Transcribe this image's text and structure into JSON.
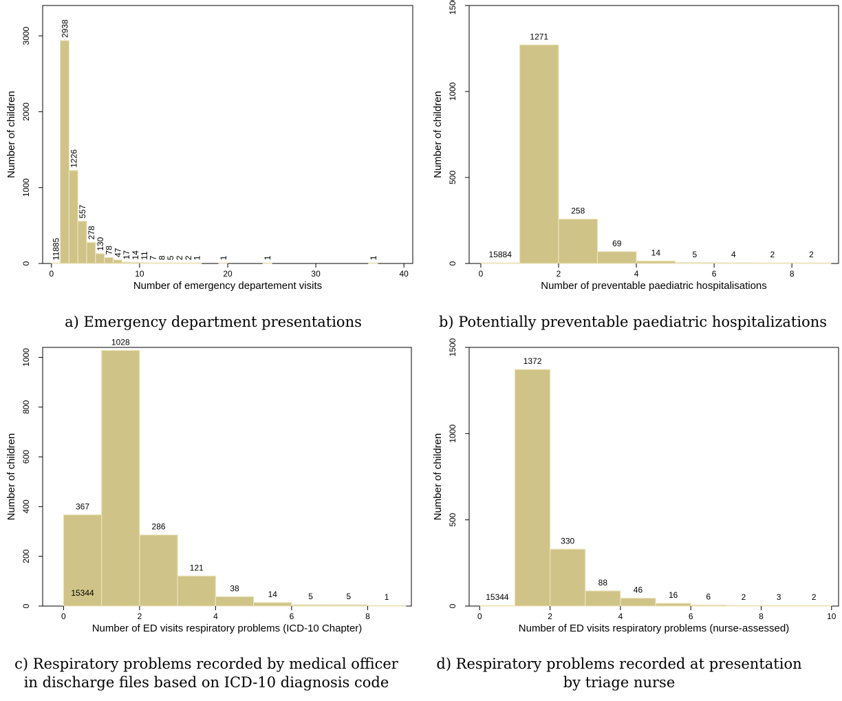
{
  "colors": {
    "bar_fill": "#cfc387",
    "bar_edge": "#ece4bd",
    "axis": "#000000",
    "text": "#000000"
  },
  "chart_data": [
    {
      "id": "a",
      "type": "bar",
      "caption": [
        "a) Emergency department presentations"
      ],
      "xlabel": "Number of emergency departement visits",
      "ylabel": "Number of children",
      "xlim": [
        -1,
        41
      ],
      "ylim": [
        0,
        3400
      ],
      "xticks": [
        "0",
        "10",
        "20",
        "30",
        "40"
      ],
      "yticks": [
        "0",
        "1000",
        "2000",
        "3000"
      ],
      "label_orientation": "vertical",
      "bar_width": 1,
      "bars": [
        {
          "x": 0,
          "value": 0,
          "label": "11885"
        },
        {
          "x": 1,
          "value": 2938,
          "label": "2938"
        },
        {
          "x": 2,
          "value": 1226,
          "label": "1226"
        },
        {
          "x": 3,
          "value": 557,
          "label": "557"
        },
        {
          "x": 4,
          "value": 278,
          "label": "278"
        },
        {
          "x": 5,
          "value": 130,
          "label": "130"
        },
        {
          "x": 6,
          "value": 78,
          "label": "78"
        },
        {
          "x": 7,
          "value": 47,
          "label": "47"
        },
        {
          "x": 8,
          "value": 17,
          "label": "17"
        },
        {
          "x": 9,
          "value": 14,
          "label": "14"
        },
        {
          "x": 10,
          "value": 11,
          "label": "11"
        },
        {
          "x": 11,
          "value": 7,
          "label": "7"
        },
        {
          "x": 12,
          "value": 8,
          "label": "8"
        },
        {
          "x": 13,
          "value": 5,
          "label": "5"
        },
        {
          "x": 14,
          "value": 2,
          "label": "2"
        },
        {
          "x": 15,
          "value": 2,
          "label": "2"
        },
        {
          "x": 16,
          "value": 1,
          "label": "1"
        },
        {
          "x": 19,
          "value": 1,
          "label": "1"
        },
        {
          "x": 24,
          "value": 1,
          "label": "1"
        },
        {
          "x": 36,
          "value": 1,
          "label": "1"
        }
      ]
    },
    {
      "id": "b",
      "type": "bar",
      "caption": [
        "b) Potentially preventable paediatric hospitalizations"
      ],
      "xlabel": "Number of preventable paediatric hospitalisations",
      "ylabel": "Number of children",
      "xlim": [
        -0.3,
        9.2
      ],
      "ylim": [
        0,
        1500
      ],
      "xticks": [
        "0",
        "2",
        "4",
        "6",
        "8"
      ],
      "yticks": [
        "0",
        "500",
        "1000",
        "1500"
      ],
      "label_orientation": "horizontal",
      "bar_width": 1,
      "bars": [
        {
          "x": 0,
          "value": 0,
          "label": "15884"
        },
        {
          "x": 1,
          "value": 1271,
          "label": "1271"
        },
        {
          "x": 2,
          "value": 258,
          "label": "258"
        },
        {
          "x": 3,
          "value": 69,
          "label": "69"
        },
        {
          "x": 4,
          "value": 14,
          "label": "14"
        },
        {
          "x": 5,
          "value": 5,
          "label": "5"
        },
        {
          "x": 6,
          "value": 4,
          "label": "4"
        },
        {
          "x": 7,
          "value": 2,
          "label": "2"
        },
        {
          "x": 8,
          "value": 2,
          "label": "2"
        }
      ]
    },
    {
      "id": "c",
      "type": "bar",
      "caption": [
        "c) Respiratory problems recorded by medical officer",
        "in discharge files based on ICD-10 diagnosis code"
      ],
      "xlabel": "Number of ED visits respiratory problems (ICD-10 Chapter)",
      "ylabel": "Number of children",
      "xlim": [
        -0.55,
        9.15
      ],
      "ylim": [
        0,
        1040
      ],
      "xticks": [
        "0",
        "2",
        "4",
        "6",
        "8"
      ],
      "yticks": [
        "0",
        "200",
        "400",
        "600",
        "800",
        "1000"
      ],
      "label_orientation": "horizontal",
      "bar_width": 1,
      "bars": [
        {
          "x": 0,
          "value": 367,
          "label": "367"
        },
        {
          "x": 1,
          "value": 1028,
          "label": "1028"
        },
        {
          "x": 2,
          "value": 286,
          "label": "286"
        },
        {
          "x": 3,
          "value": 121,
          "label": "121"
        },
        {
          "x": 4,
          "value": 38,
          "label": "38"
        },
        {
          "x": 5,
          "value": 14,
          "label": "14"
        },
        {
          "x": 6,
          "value": 5,
          "label": "5"
        },
        {
          "x": 7,
          "value": 5,
          "label": "5"
        },
        {
          "x": 8,
          "value": 1,
          "label": "1"
        }
      ],
      "inner_label": "15344"
    },
    {
      "id": "d",
      "type": "bar",
      "caption": [
        "d) Respiratory problems recorded at presentation",
        "by triage nurse"
      ],
      "xlabel": "Number of ED visits respiratory problems (nurse-assessed)",
      "ylabel": "Number of children",
      "xlim": [
        -0.3,
        10.2
      ],
      "ylim": [
        0,
        1500
      ],
      "xticks": [
        "0",
        "2",
        "4",
        "6",
        "8",
        "10"
      ],
      "yticks": [
        "0",
        "500",
        "1000",
        "1500"
      ],
      "label_orientation": "horizontal",
      "bar_width": 1,
      "bars": [
        {
          "x": 0,
          "value": 0,
          "label": "15344"
        },
        {
          "x": 1,
          "value": 1372,
          "label": "1372"
        },
        {
          "x": 2,
          "value": 330,
          "label": "330"
        },
        {
          "x": 3,
          "value": 88,
          "label": "88"
        },
        {
          "x": 4,
          "value": 46,
          "label": "46"
        },
        {
          "x": 5,
          "value": 16,
          "label": "16"
        },
        {
          "x": 6,
          "value": 6,
          "label": "6"
        },
        {
          "x": 7,
          "value": 2,
          "label": "2"
        },
        {
          "x": 8,
          "value": 3,
          "label": "3"
        },
        {
          "x": 9,
          "value": 2,
          "label": "2"
        }
      ]
    }
  ]
}
